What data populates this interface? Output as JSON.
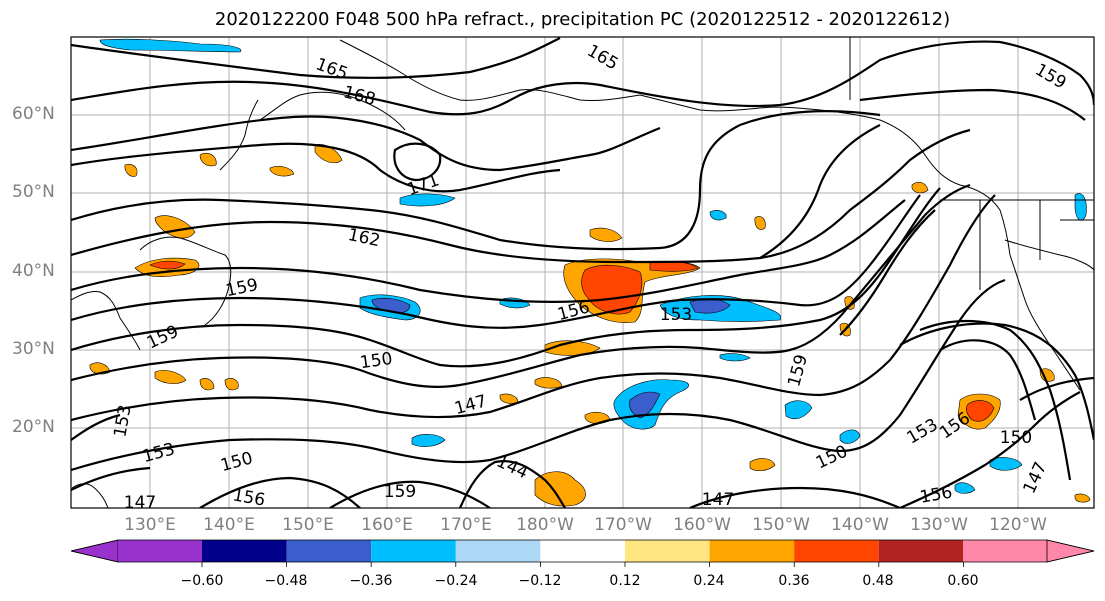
{
  "title": "2020122200 F048 500 hPa refract., precipitation PC (2020122512 - 2020122612)",
  "lat_labels": [
    "60°N",
    "50°N",
    "40°N",
    "30°N",
    "20°N"
  ],
  "lon_labels": [
    "130°E",
    "140°E",
    "150°E",
    "160°E",
    "170°E",
    "180°W",
    "170°W",
    "160°W",
    "150°W",
    "140°W",
    "130°W",
    "120°W"
  ],
  "contour_labels": [
    "165",
    "168",
    "171",
    "162",
    "159",
    "159",
    "156",
    "153",
    "150",
    "147",
    "144",
    "150",
    "159",
    "156",
    "153",
    "150",
    "147",
    "156",
    "150",
    "153",
    "156",
    "159",
    "165",
    "159",
    "147",
    "147",
    "153"
  ],
  "colorbar": {
    "ticks": [
      "−0.60",
      "−0.48",
      "−0.36",
      "−0.24",
      "−0.12",
      "0.12",
      "0.24",
      "0.36",
      "0.48",
      "0.60"
    ],
    "colors": [
      "#9932cc",
      "#00008b",
      "#3a5fcd",
      "#00bfff",
      "#add8f5",
      "#ffffff",
      "#ffe680",
      "#ffa500",
      "#ff4500",
      "#b22222",
      "#ff88aa"
    ]
  }
}
